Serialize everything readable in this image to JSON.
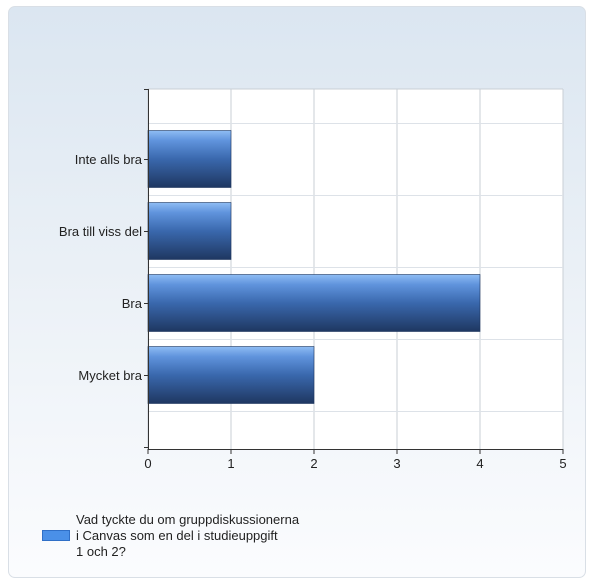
{
  "chart_data": {
    "type": "bar",
    "orientation": "horizontal",
    "categories": [
      "Inte alls bra",
      "Bra till viss del",
      "Bra",
      "Mycket bra"
    ],
    "series": [
      {
        "name": "Vad tyckte du om gruppdiskussionerna i Canvas som en del i studieuppgift 1 och 2?",
        "values": [
          1,
          1,
          4,
          2
        ]
      }
    ],
    "xlim": [
      0,
      5
    ],
    "xticks": [
      "0",
      "1",
      "2",
      "3",
      "4",
      "5"
    ],
    "grid": true,
    "legend_position": "bottom-left",
    "colors": {
      "bar_top": "#7fb1f0",
      "bar_mid": "#3d6fb8",
      "bar_bottom": "#1f3a66",
      "legend_swatch": "#4a90e8",
      "grid": "#c9cfd6"
    }
  },
  "legend": {
    "lines": [
      "Vad tyckte du om gruppdiskussionerna",
      "i Canvas som en del i studieuppgift",
      "1 och 2?"
    ]
  }
}
